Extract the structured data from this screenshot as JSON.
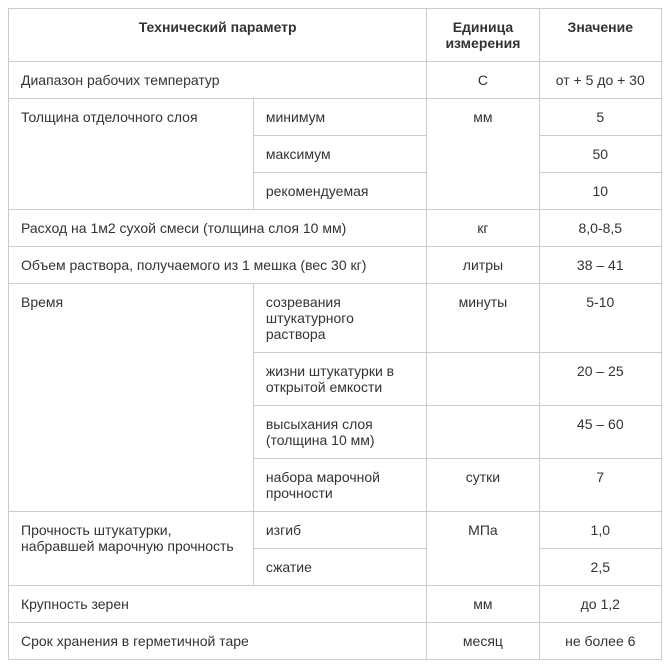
{
  "headers": {
    "param": "Технический параметр",
    "unit": "Единица измерения",
    "value": "Значение"
  },
  "rows": {
    "temp_range": {
      "label": "Диапазон рабочих температур",
      "unit": "С",
      "value": "от + 5 до + 30"
    },
    "layer_thickness": {
      "label": "Толщина отделочного слоя",
      "unit": "мм",
      "min": {
        "label": "минимум",
        "value": "5"
      },
      "max": {
        "label": "максимум",
        "value": "50"
      },
      "rec": {
        "label": "рекомендуемая",
        "value": "10"
      }
    },
    "consumption": {
      "label": "Расход на 1м2 сухой смеси (толщина слоя 10 мм)",
      "unit": "кг",
      "value": "8,0-8,5"
    },
    "volume": {
      "label": "Объем раствора, получаемого из 1 мешка (вес 30 кг)",
      "unit": "литры",
      "value": "38 – 41"
    },
    "time": {
      "label": "Время",
      "maturation": {
        "label": "созревания штукатурного раствора",
        "unit": "минуты",
        "value": "5-10"
      },
      "open_life": {
        "label": "жизни штукатурки в открытой емкости",
        "value": "20 – 25"
      },
      "drying": {
        "label": "высыхания слоя (толщина 10 мм)",
        "value": "45 – 60"
      },
      "strength_gain": {
        "label": "набора марочной прочности",
        "unit": "сутки",
        "value": "7"
      }
    },
    "strength": {
      "label": "Прочность штукатурки, набравшей марочную прочность",
      "unit": "МПа",
      "bend": {
        "label": "изгиб",
        "value": "1,0"
      },
      "compress": {
        "label": "сжатие",
        "value": "2,5"
      }
    },
    "grain": {
      "label": "Крупность зерен",
      "unit": "мм",
      "value": "до 1,2"
    },
    "shelf": {
      "label": "Срок хранения в герметичной таре",
      "unit": "месяц",
      "value": "не более 6"
    }
  }
}
